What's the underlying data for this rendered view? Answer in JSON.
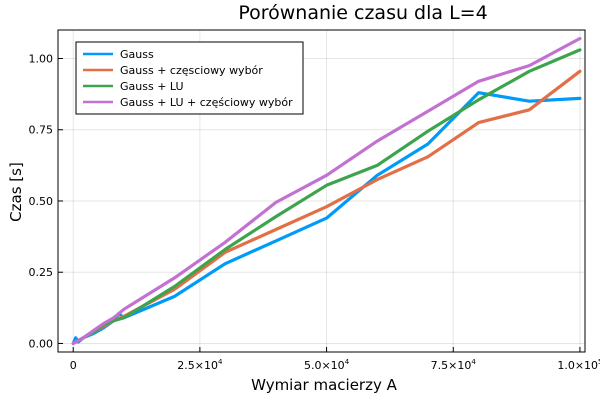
{
  "chart_data": {
    "type": "line",
    "title": "Porównanie czasu dla L=4",
    "xlabel": "Wymiar macierzy A",
    "ylabel": "Czas [s]",
    "xlim": [
      -3000,
      101000
    ],
    "ylim": [
      -0.03,
      1.1
    ],
    "grid": true,
    "legend_position": "top-left",
    "x_ticks": [
      {
        "value": 0,
        "base": "0",
        "exp": ""
      },
      {
        "value": 25000,
        "base": "2.5×10",
        "exp": "4"
      },
      {
        "value": 50000,
        "base": "5.0×10",
        "exp": "4"
      },
      {
        "value": 75000,
        "base": "7.5×10",
        "exp": "4"
      },
      {
        "value": 100000,
        "base": "1.0×10",
        "exp": "5"
      }
    ],
    "y_ticks": [
      {
        "value": 0.0,
        "label": "0.00"
      },
      {
        "value": 0.25,
        "label": "0.25"
      },
      {
        "value": 0.5,
        "label": "0.50"
      },
      {
        "value": 0.75,
        "label": "0.75"
      },
      {
        "value": 1.0,
        "label": "1.00"
      }
    ],
    "series": [
      {
        "name": "Gauss",
        "color": "#009af9",
        "x": [
          0,
          500,
          1000,
          2000,
          4000,
          6000,
          8000,
          9000,
          10000,
          20000,
          30000,
          40000,
          50000,
          60000,
          70000,
          80000,
          90000,
          100000
        ],
        "y": [
          0.0,
          0.02,
          0.005,
          0.02,
          0.035,
          0.055,
          0.08,
          0.105,
          0.09,
          0.165,
          0.28,
          0.36,
          0.44,
          0.59,
          0.7,
          0.88,
          0.85,
          0.86
        ]
      },
      {
        "name": "Gauss + częsciowy wybór",
        "color": "#e26f46",
        "x": [
          0,
          2000,
          4000,
          6000,
          8000,
          10000,
          20000,
          30000,
          40000,
          50000,
          60000,
          70000,
          80000,
          90000,
          100000
        ],
        "y": [
          0.0,
          0.02,
          0.04,
          0.06,
          0.08,
          0.095,
          0.19,
          0.32,
          0.4,
          0.48,
          0.575,
          0.655,
          0.775,
          0.82,
          0.955
        ]
      },
      {
        "name": "Gauss + LU",
        "color": "#3da44d",
        "x": [
          0,
          2000,
          4000,
          6000,
          8000,
          10000,
          20000,
          30000,
          40000,
          50000,
          60000,
          70000,
          80000,
          90000,
          100000
        ],
        "y": [
          0.0,
          0.02,
          0.04,
          0.065,
          0.08,
          0.09,
          0.2,
          0.33,
          0.445,
          0.555,
          0.625,
          0.745,
          0.855,
          0.955,
          1.03
        ]
      },
      {
        "name": "Gauss + LU + częściowy wybór",
        "color": "#c271d2",
        "x": [
          0,
          2000,
          4000,
          6000,
          8000,
          10000,
          20000,
          30000,
          40000,
          50000,
          60000,
          70000,
          80000,
          90000,
          100000
        ],
        "y": [
          0.0,
          0.02,
          0.045,
          0.07,
          0.09,
          0.12,
          0.23,
          0.355,
          0.495,
          0.59,
          0.71,
          0.815,
          0.92,
          0.975,
          1.07
        ]
      }
    ]
  }
}
